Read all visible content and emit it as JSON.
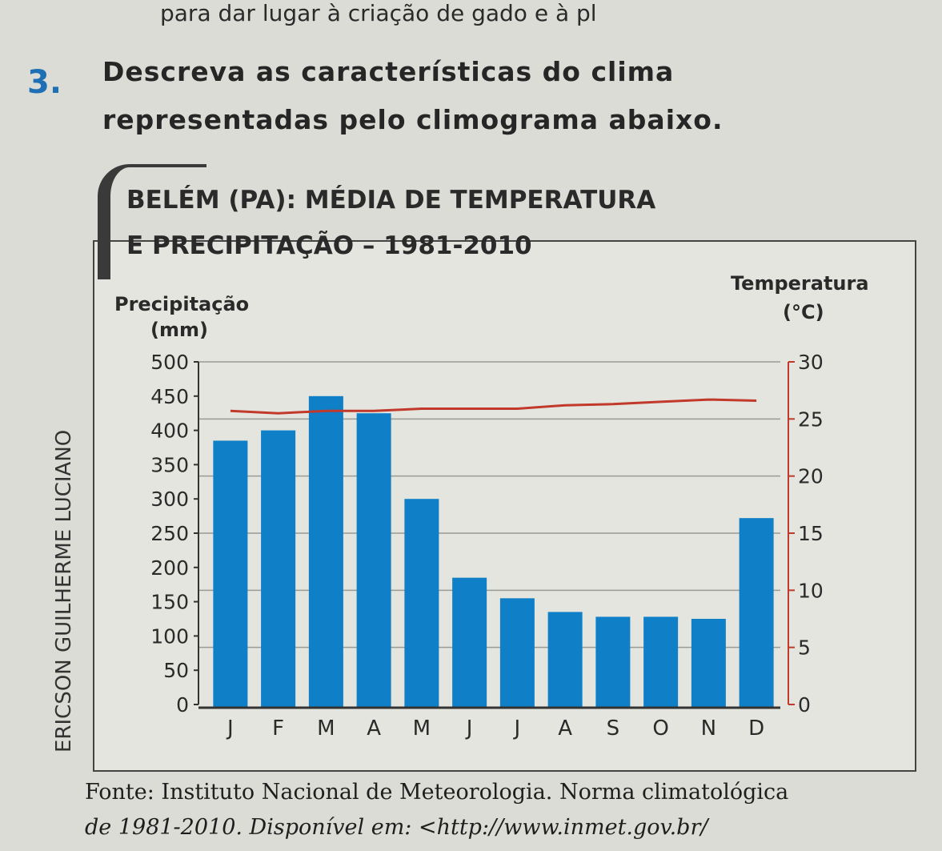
{
  "top_line": "para dar lugar à criação de gado e à pl",
  "question": {
    "number": "3.",
    "text": "Descreva as características do clima representadas pelo climograma abaixo."
  },
  "chart_title_line1": "BELÉM (PA): MÉDIA DE TEMPERATURA",
  "chart_title_line2": "E PRECIPITAÇÃO – 1981-2010",
  "credit": "ERICSON GUILHERME LUCIANO",
  "source": {
    "line1": "Fonte: Instituto Nacional de Meteorologia. Norma climatológica",
    "line2": "de 1981-2010. Disponível em: <http://www.inmet.gov.br/"
  },
  "chart_data": {
    "type": "bar",
    "title": "BELÉM (PA): MÉDIA DE TEMPERATURA E PRECIPITAÇÃO – 1981-2010",
    "categories": [
      "J",
      "F",
      "M",
      "A",
      "M",
      "J",
      "J",
      "A",
      "S",
      "O",
      "N",
      "D"
    ],
    "ylabel_left": "Precipitação (mm)",
    "ylabel_right_1": "Temperatura",
    "ylabel_right_2": "(°C)",
    "ylim_left": [
      0,
      500
    ],
    "ylim_right": [
      0,
      30
    ],
    "yticks_left": [
      0,
      50,
      100,
      150,
      200,
      250,
      300,
      350,
      400,
      450,
      500
    ],
    "yticks_right": [
      0,
      5,
      10,
      15,
      20,
      25,
      30
    ],
    "series": [
      {
        "name": "Precipitação",
        "type": "bar",
        "axis": "left",
        "values": [
          385,
          400,
          450,
          425,
          300,
          185,
          155,
          135,
          128,
          128,
          125,
          272
        ]
      },
      {
        "name": "Temperatura",
        "type": "line",
        "axis": "right",
        "values": [
          25.7,
          25.5,
          25.7,
          25.7,
          25.9,
          25.9,
          25.9,
          26.2,
          26.3,
          26.5,
          26.7,
          26.6
        ]
      }
    ],
    "bar_color": "#0f7fc7",
    "line_color": "#c0392b",
    "axis_right_color": "#c0392b"
  }
}
